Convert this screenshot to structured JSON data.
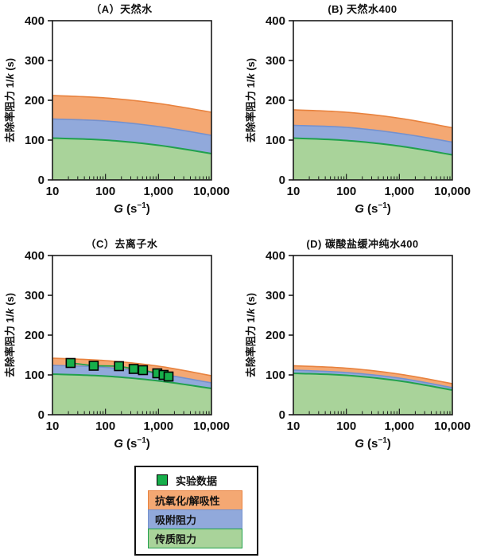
{
  "figure": {
    "ylabel_prefix": "去除率阻力 1/",
    "ylabel_var": "k",
    "ylabel_suffix": " (s)",
    "xlabel_var": "G",
    "xlabel_mid": " (s",
    "xlabel_sup": "−1",
    "xlabel_end": ")",
    "y_ticks": [
      0,
      100,
      200,
      300,
      400
    ],
    "y_tick_labels": [
      "0",
      "100",
      "200",
      "300",
      "400"
    ],
    "x_ticks": [
      10,
      100,
      1000,
      10000
    ],
    "x_tick_labels": [
      "10",
      "100",
      "1,000",
      "10,000"
    ]
  },
  "colors": {
    "orange_fill": "#f4a873",
    "orange_line": "#e8823e",
    "blue_fill": "#91a9db",
    "blue_line": "#7491ce",
    "green_fill": "#a9d39a",
    "green_line": "#21a14d",
    "marker_fill": "#17af4b",
    "marker_border": "#000000",
    "axis": "#1a1a1a"
  },
  "legend": {
    "experimental_label": "实验数据",
    "bands": [
      {
        "label": "抗氧化/解吸性",
        "color_key": "orange"
      },
      {
        "label": "吸附阻力",
        "color_key": "blue"
      },
      {
        "label": "传质阻力",
        "color_key": "green"
      }
    ]
  },
  "chart_data": [
    {
      "panel": "A",
      "type": "area",
      "title": "（A）天然水",
      "xlabel": "G (s⁻¹)",
      "ylabel": "去除率阻力 1/k (s)",
      "x_scale": "log",
      "xlim": [
        10,
        10000
      ],
      "ylim": [
        0,
        400
      ],
      "x": [
        10,
        100,
        1000,
        10000
      ],
      "series": [
        {
          "name": "传质阻力",
          "role": "mass-transfer",
          "color_key": "green",
          "cumulative_top": [
            105,
            100,
            87,
            66
          ]
        },
        {
          "name": "吸附阻力",
          "role": "adsorption",
          "color_key": "blue",
          "cumulative_top": [
            153,
            148,
            134,
            112
          ]
        },
        {
          "name": "抗氧化/解吸性",
          "role": "antioxidation-desorption",
          "color_key": "orange",
          "cumulative_top": [
            212,
            206,
            192,
            170
          ]
        }
      ]
    },
    {
      "panel": "B",
      "type": "area",
      "title": "(B) 天然水400",
      "xlabel": "G (s⁻¹)",
      "ylabel": "去除率阻力 1/k (s)",
      "x_scale": "log",
      "xlim": [
        10,
        10000
      ],
      "ylim": [
        0,
        400
      ],
      "x": [
        10,
        100,
        1000,
        10000
      ],
      "series": [
        {
          "name": "传质阻力",
          "role": "mass-transfer",
          "color_key": "green",
          "cumulative_top": [
            105,
            99,
            85,
            63
          ]
        },
        {
          "name": "吸附阻力",
          "role": "adsorption",
          "color_key": "blue",
          "cumulative_top": [
            137,
            132,
            117,
            95
          ]
        },
        {
          "name": "抗氧化/解吸性",
          "role": "antioxidation-desorption",
          "color_key": "orange",
          "cumulative_top": [
            176,
            170,
            155,
            131
          ]
        }
      ]
    },
    {
      "panel": "C",
      "type": "area",
      "title": "（C）去离子水",
      "xlabel": "G (s⁻¹)",
      "ylabel": "去除率阻力 1/k (s)",
      "x_scale": "log",
      "xlim": [
        10,
        10000
      ],
      "ylim": [
        0,
        400
      ],
      "x": [
        10,
        100,
        1000,
        10000
      ],
      "series": [
        {
          "name": "传质阻力",
          "role": "mass-transfer",
          "color_key": "green",
          "cumulative_top": [
            102,
            97,
            85,
            66
          ]
        },
        {
          "name": "吸附阻力",
          "role": "adsorption",
          "color_key": "blue",
          "cumulative_top": [
            124,
            119,
            103,
            80
          ]
        },
        {
          "name": "抗氧化/解吸性",
          "role": "antioxidation-desorption",
          "color_key": "orange",
          "cumulative_top": [
            142,
            136,
            122,
            98
          ]
        }
      ],
      "points": {
        "name": "实验数据",
        "marker": "square",
        "x": [
          22,
          60,
          180,
          340,
          510,
          950,
          1250,
          1550
        ],
        "y": [
          130,
          123,
          122,
          115,
          112,
          104,
          100,
          96
        ]
      }
    },
    {
      "panel": "D",
      "type": "area",
      "title": "(D) 碳酸盐缓冲纯水400",
      "xlabel": "G (s⁻¹)",
      "ylabel": "去除率阻力 1/k (s)",
      "x_scale": "log",
      "xlim": [
        10,
        10000
      ],
      "ylim": [
        0,
        400
      ],
      "x": [
        10,
        100,
        1000,
        10000
      ],
      "series": [
        {
          "name": "传质阻力",
          "role": "mass-transfer",
          "color_key": "green",
          "cumulative_top": [
            104,
            99,
            85,
            62
          ]
        },
        {
          "name": "吸附阻力",
          "role": "adsorption",
          "color_key": "blue",
          "cumulative_top": [
            112,
            106,
            92,
            68
          ]
        },
        {
          "name": "抗氧化/解吸性",
          "role": "antioxidation-desorption",
          "color_key": "orange",
          "cumulative_top": [
            123,
            117,
            102,
            78
          ]
        }
      ]
    }
  ]
}
